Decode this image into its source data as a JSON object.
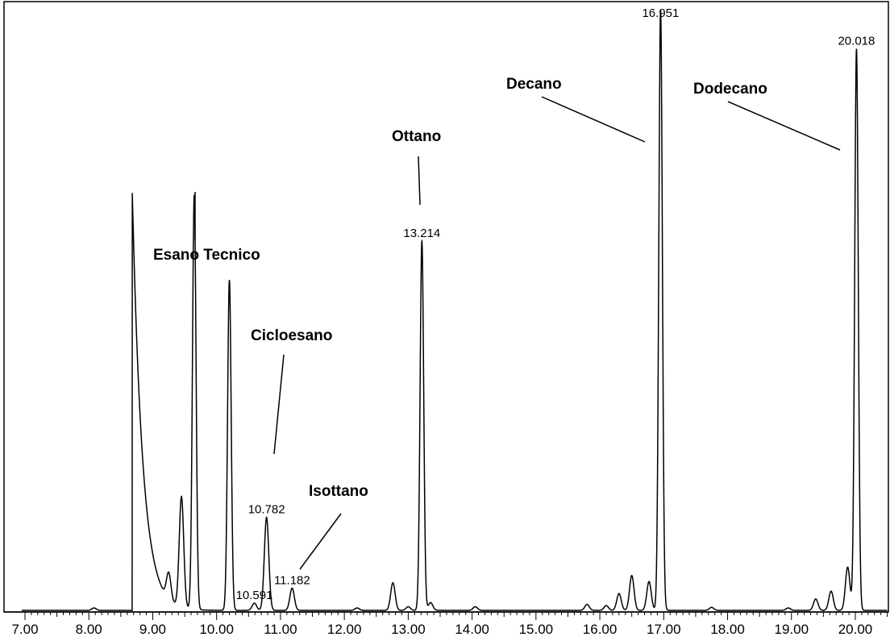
{
  "chart_data": {
    "type": "line",
    "title": "",
    "xlabel": "",
    "ylabel": "",
    "xlim": [
      6.9,
      20.55
    ],
    "ylim": [
      0,
      100
    ],
    "x_ticks": [
      "7.00",
      "8.00",
      "9.00",
      "10.00",
      "11.00",
      "12.00",
      "13.00",
      "14.00",
      "15.00",
      "16.00",
      "17.00",
      "18.00",
      "19.00",
      "20.00"
    ],
    "grid": false,
    "line_color": "#000000",
    "peaks": [
      {
        "rt": 8.08,
        "height": 0.4
      },
      {
        "rt": 8.68,
        "height": 69.5,
        "sharp_front": true
      },
      {
        "rt": 9.25,
        "height": 4.4
      },
      {
        "rt": 9.45,
        "height": 18.4
      },
      {
        "rt": 9.65,
        "height": 69.0
      },
      {
        "rt": 10.2,
        "height": 55.0
      },
      {
        "rt": 10.591,
        "height": 1.2,
        "label": "10.591"
      },
      {
        "rt": 10.782,
        "height": 15.5,
        "label": "10.782"
      },
      {
        "rt": 11.182,
        "height": 3.7,
        "label": "11.182"
      },
      {
        "rt": 12.2,
        "height": 0.4
      },
      {
        "rt": 12.76,
        "height": 4.6
      },
      {
        "rt": 13.0,
        "height": 0.6
      },
      {
        "rt": 13.214,
        "height": 61.5,
        "label": "13.214"
      },
      {
        "rt": 13.35,
        "height": 1.3
      },
      {
        "rt": 14.05,
        "height": 0.6
      },
      {
        "rt": 15.8,
        "height": 1.0
      },
      {
        "rt": 16.1,
        "height": 0.8
      },
      {
        "rt": 16.3,
        "height": 2.8
      },
      {
        "rt": 16.5,
        "height": 5.8
      },
      {
        "rt": 16.77,
        "height": 4.8
      },
      {
        "rt": 16.951,
        "height": 100,
        "label": "16.951"
      },
      {
        "rt": 17.75,
        "height": 0.5
      },
      {
        "rt": 18.95,
        "height": 0.4
      },
      {
        "rt": 19.38,
        "height": 1.9
      },
      {
        "rt": 19.62,
        "height": 3.2
      },
      {
        "rt": 19.88,
        "height": 7.2
      },
      {
        "rt": 20.018,
        "height": 93.5,
        "label": "20.018"
      }
    ],
    "annotations": [
      "Esano Tecnico",
      "Cicloesano",
      "Isottano",
      "Ottano",
      "Decano",
      "Dodecano"
    ]
  }
}
